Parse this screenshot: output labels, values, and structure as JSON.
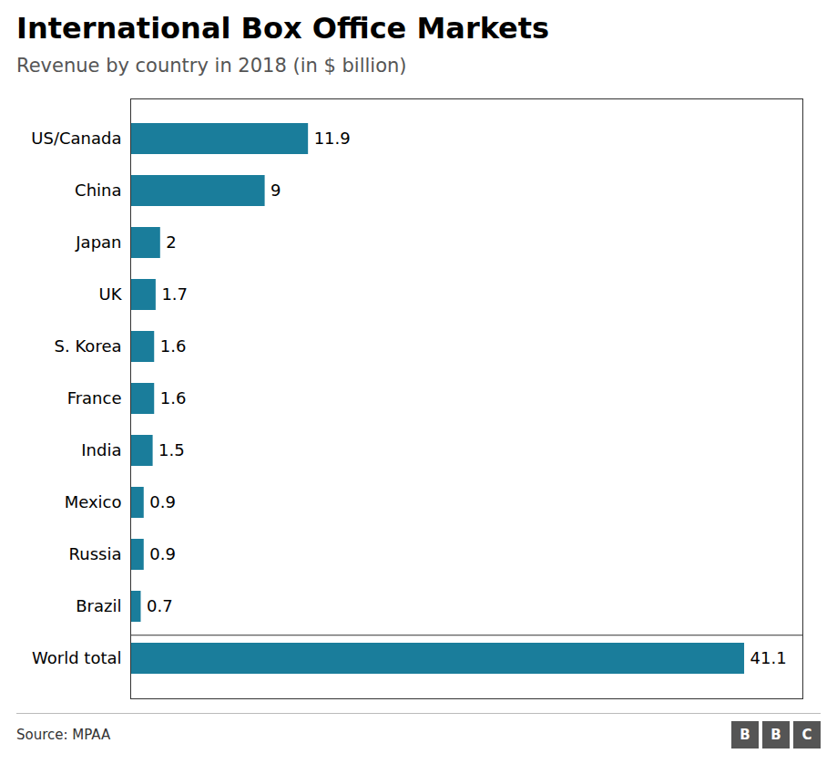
{
  "chart_data": {
    "type": "bar",
    "orientation": "horizontal",
    "title": "International Box Office Markets",
    "subtitle": "Revenue by country in 2018 (in $ billion)",
    "source": "Source: MPAA",
    "logo": "BBC",
    "categories": [
      "US/Canada",
      "China",
      "Japan",
      "UK",
      "S. Korea",
      "France",
      "India",
      "Mexico",
      "Russia",
      "Brazil",
      "World total"
    ],
    "values": [
      11.9,
      9.0,
      2.0,
      1.7,
      1.6,
      1.6,
      1.5,
      0.9,
      0.9,
      0.7,
      41.1
    ],
    "color": "#1a7d9b",
    "xlim": [
      0,
      45
    ],
    "tick_labels": "y",
    "grid": false,
    "data_labels": true
  }
}
